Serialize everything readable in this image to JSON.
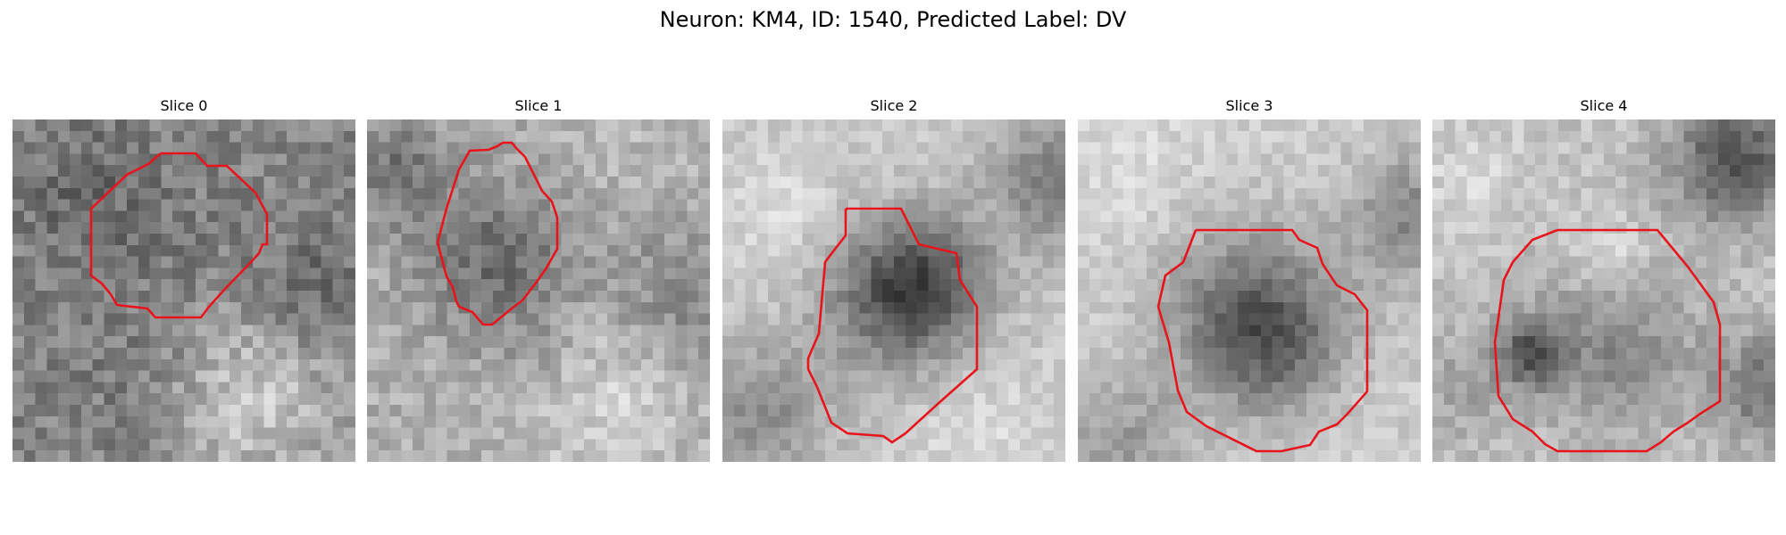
{
  "figure": {
    "title": "Neuron: KM4, ID: 1540, Predicted Label: DV"
  },
  "panels": [
    {
      "title": "Slice 0",
      "contour_color": "#e8141c"
    },
    {
      "title": "Slice 1",
      "contour_color": "#e8141c"
    },
    {
      "title": "Slice 2",
      "contour_color": "#e8141c"
    },
    {
      "title": "Slice 3",
      "contour_color": "#e8141c"
    },
    {
      "title": "Slice 4",
      "contour_color": "#e8141c"
    }
  ],
  "colormap": "gray"
}
